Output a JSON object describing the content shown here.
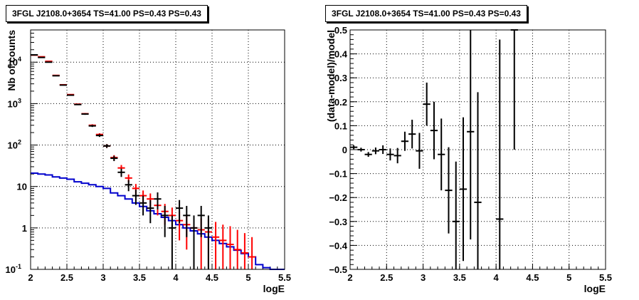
{
  "chart_data": [
    {
      "type": "histogram-log",
      "title": "3FGL J2108.0+3654 TS=41.00 PS=0.43 PS=0.43",
      "xlabel": "logE",
      "ylabel": "Nb of counts",
      "xlim": [
        2,
        5.5
      ],
      "ylim": [
        0.1,
        60000
      ],
      "log_y": true,
      "grid": true,
      "x_ticks": [
        "2",
        "2.5",
        "3",
        "3.5",
        "4",
        "4.5",
        "5",
        "5.5"
      ],
      "y_ticks": [
        "10^-1",
        "1",
        "10",
        "10^2",
        "10^3",
        "10^4"
      ],
      "bin_edges": [
        2.0,
        2.1,
        2.2,
        2.3,
        2.4,
        2.5,
        2.6,
        2.7,
        2.8,
        2.9,
        3.0,
        3.1,
        3.2,
        3.3,
        3.4,
        3.5,
        3.6,
        3.7,
        3.8,
        3.9,
        4.0,
        4.1,
        4.2,
        4.3,
        4.4,
        4.5,
        4.6,
        4.7,
        4.8,
        4.9,
        5.0,
        5.1,
        5.2,
        5.3,
        5.4,
        5.5
      ],
      "series": [
        {
          "color": "#000000",
          "style": "points-errorbars",
          "x": [
            2.05,
            2.15,
            2.25,
            2.35,
            2.45,
            2.55,
            2.65,
            2.75,
            2.85,
            2.95,
            3.05,
            3.15,
            3.25,
            3.35,
            3.45,
            3.55,
            3.65,
            3.75,
            3.85,
            3.95,
            4.05,
            4.15,
            4.25,
            4.35,
            4.45
          ],
          "y": [
            15000,
            13000,
            10000,
            4700,
            2800,
            1600,
            950,
            560,
            290,
            170,
            95,
            48,
            22,
            11,
            6,
            4,
            3,
            5,
            2,
            1,
            3,
            2,
            1,
            2,
            1
          ],
          "err_low": [
            120,
            110,
            100,
            68,
            53,
            40,
            31,
            24,
            17,
            13,
            10,
            7,
            5,
            3.3,
            2.4,
            2,
            1.7,
            2.2,
            1.4,
            0.9,
            1.7,
            1.4,
            0.9,
            1.4,
            0.9
          ],
          "err_high": [
            120,
            110,
            100,
            68,
            53,
            40,
            31,
            24,
            17,
            13,
            10,
            7,
            5,
            3.3,
            2.4,
            2,
            1.7,
            2.2,
            1.4,
            1,
            1.7,
            1.4,
            1,
            1.4,
            1
          ]
        },
        {
          "color": "#ff0000",
          "style": "model-errorbars",
          "x": [
            2.05,
            2.15,
            2.25,
            2.35,
            2.45,
            2.55,
            2.65,
            2.75,
            2.85,
            2.95,
            3.05,
            3.15,
            3.25,
            3.35,
            3.45,
            3.55,
            3.65,
            3.75,
            3.85,
            3.95,
            4.05,
            4.15,
            4.25,
            4.35,
            4.45,
            4.55,
            4.65,
            4.75,
            4.85,
            4.95,
            5.05
          ],
          "y": [
            14800,
            13500,
            10500,
            4800,
            2850,
            1650,
            970,
            570,
            300,
            180,
            95,
            50,
            28,
            16,
            9,
            6,
            5,
            3.5,
            2.5,
            2,
            1.5,
            1.2,
            1.0,
            0.9,
            0.8,
            0.6,
            0.5,
            0.4,
            0.3,
            0.25,
            0.2
          ],
          "err_low": [
            120,
            115,
            100,
            68,
            53,
            40,
            31,
            23,
            17,
            13,
            10,
            7,
            5,
            3.5,
            2.5,
            2,
            1.8,
            1.5,
            1.3,
            1.1,
            1.0,
            0.9,
            0.9,
            0.8,
            0.7,
            0.5,
            0.4,
            0.3,
            0.25,
            0.2,
            0.1
          ],
          "err_high": [
            120,
            115,
            100,
            68,
            53,
            40,
            31,
            23,
            17,
            13,
            10,
            7,
            5,
            3.5,
            2.5,
            2,
            1.8,
            1.5,
            1.3,
            1.1,
            1.0,
            0.9,
            0.9,
            0.8,
            0.8,
            0.8,
            0.7,
            0.7,
            0.6,
            0.5,
            0.4
          ]
        },
        {
          "color": "#0000cc",
          "style": "step",
          "y": [
            21,
            20,
            19,
            17,
            16,
            15,
            13,
            12,
            11,
            10,
            9,
            7,
            6,
            5,
            4,
            3.3,
            2.6,
            2.2,
            1.8,
            1.5,
            1.2,
            1.0,
            0.85,
            0.72,
            0.6,
            0.5,
            0.42,
            0.35,
            0.29,
            0.24,
            0.2,
            0.13,
            0.11,
            0.1,
            0.1
          ]
        }
      ]
    },
    {
      "type": "scatter-errorbars",
      "title": "3FGL J2108.0+3654 TS=41.00 PS=0.43 PS=0.43",
      "xlabel": "logE",
      "ylabel": "(data-model)/model",
      "xlim": [
        2,
        5.5
      ],
      "ylim": [
        -0.5,
        0.5
      ],
      "grid": true,
      "x_ticks": [
        "2",
        "2.5",
        "3",
        "3.5",
        "4",
        "4.5",
        "5",
        "5.5"
      ],
      "y_ticks": [
        "-0.5",
        "-0.4",
        "-0.3",
        "-0.2",
        "-0.1",
        "0",
        "0.1",
        "0.2",
        "0.3",
        "0.4",
        "0.5"
      ],
      "series": [
        {
          "color": "#000000",
          "x": [
            2.05,
            2.15,
            2.25,
            2.35,
            2.45,
            2.55,
            2.65,
            2.75,
            2.85,
            2.95,
            3.05,
            3.15,
            3.25,
            3.35,
            3.45,
            3.55,
            3.65,
            3.75,
            4.05,
            4.25
          ],
          "y": [
            0.01,
            0.0,
            -0.02,
            -0.005,
            0.0,
            -0.02,
            -0.025,
            0.035,
            0.065,
            -0.005,
            0.19,
            0.08,
            -0.02,
            -0.17,
            -0.3,
            -0.165,
            0.075,
            -0.22,
            -0.29,
            0.5
          ],
          "err": [
            0.008,
            0.008,
            0.01,
            0.014,
            0.018,
            0.025,
            0.032,
            0.04,
            0.06,
            0.075,
            0.09,
            0.12,
            0.15,
            0.18,
            0.25,
            0.3,
            0.45,
            0.46,
            0.75,
            0.5
          ]
        }
      ]
    }
  ]
}
